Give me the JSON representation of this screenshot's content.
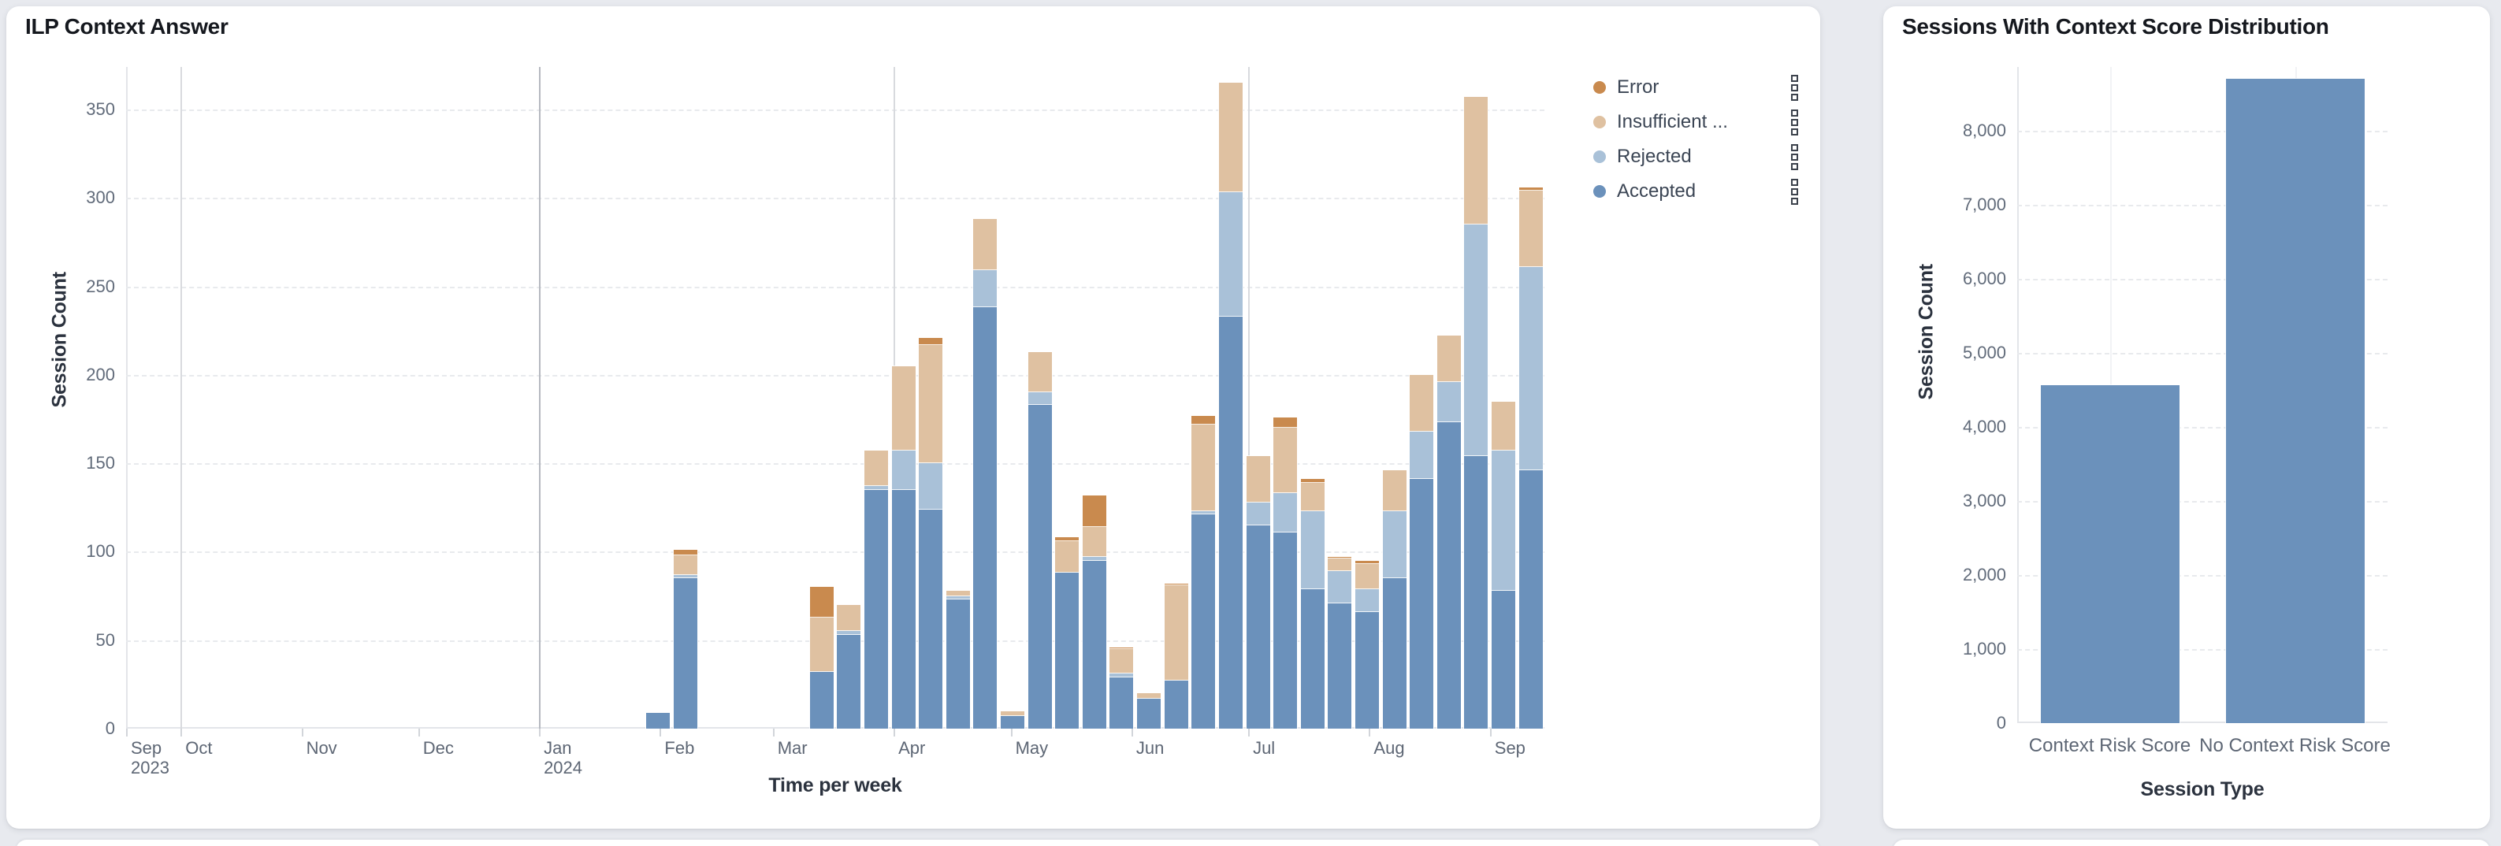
{
  "page": {
    "background": "#e8eaef"
  },
  "chart_data": [
    {
      "type": "bar",
      "stacked": true,
      "title": "ILP Context Answer",
      "xlabel": "Time per week",
      "ylabel": "Session Count",
      "ylim": [
        0,
        374
      ],
      "y_ticks": [
        0,
        50,
        100,
        150,
        200,
        250,
        300,
        350
      ],
      "grid": "dashed-horizontal",
      "legend_position": "right-top",
      "axis_start_week": "2023-09-17",
      "weeks_total": 52,
      "series_order_bottom_to_top": [
        "accepted",
        "rejected",
        "insufficient",
        "error"
      ],
      "legend": [
        {
          "key": "error",
          "label": "Error",
          "color": "#c98a4e"
        },
        {
          "key": "insufficient",
          "label": "Insufficient ...",
          "color": "#dfc1a1"
        },
        {
          "key": "rejected",
          "label": "Rejected",
          "color": "#a9c1d8"
        },
        {
          "key": "accepted",
          "label": "Accepted",
          "color": "#6b91bb"
        }
      ],
      "month_ticks": [
        {
          "label": "Sep",
          "sublabel": "2023",
          "week": 0
        },
        {
          "label": "Oct",
          "week": 2.0
        },
        {
          "label": "Nov",
          "week": 6.43
        },
        {
          "label": "Dec",
          "week": 10.71
        },
        {
          "label": "Jan",
          "sublabel": "2024",
          "week": 15.14
        },
        {
          "label": "Feb",
          "week": 19.57
        },
        {
          "label": "Mar",
          "week": 23.71
        },
        {
          "label": "Apr",
          "week": 28.14
        },
        {
          "label": "May",
          "week": 32.43
        },
        {
          "label": "Jun",
          "week": 36.86
        },
        {
          "label": "Jul",
          "week": 41.14
        },
        {
          "label": "Aug",
          "week": 45.57
        },
        {
          "label": "Sep",
          "week": 50.0
        }
      ],
      "quarter_lines": [
        {
          "week": 2.0,
          "year_boundary": false
        },
        {
          "week": 15.14,
          "year_boundary": true
        },
        {
          "week": 28.14,
          "year_boundary": false
        },
        {
          "week": 41.14,
          "year_boundary": false
        }
      ],
      "bars": [
        {
          "week_start": "2024-01-28",
          "week_index": 19,
          "accepted": 9,
          "rejected": 0,
          "insufficient": 0,
          "error": 0
        },
        {
          "week_start": "2024-02-04",
          "week_index": 20,
          "accepted": 85,
          "rejected": 2,
          "insufficient": 11,
          "error": 3
        },
        {
          "week_start": "2024-03-10",
          "week_index": 25,
          "accepted": 32,
          "rejected": 0,
          "insufficient": 31,
          "error": 17
        },
        {
          "week_start": "2024-03-17",
          "week_index": 26,
          "accepted": 53,
          "rejected": 2,
          "insufficient": 15,
          "error": 0
        },
        {
          "week_start": "2024-03-24",
          "week_index": 27,
          "accepted": 135,
          "rejected": 2,
          "insufficient": 20,
          "error": 0
        },
        {
          "week_start": "2024-03-31",
          "week_index": 28,
          "accepted": 135,
          "rejected": 22,
          "insufficient": 48,
          "error": 0
        },
        {
          "week_start": "2024-04-07",
          "week_index": 29,
          "accepted": 124,
          "rejected": 26,
          "insufficient": 67,
          "error": 4
        },
        {
          "week_start": "2024-04-14",
          "week_index": 30,
          "accepted": 73,
          "rejected": 2,
          "insufficient": 3,
          "error": 0
        },
        {
          "week_start": "2024-04-21",
          "week_index": 31,
          "accepted": 238,
          "rejected": 21,
          "insufficient": 29,
          "error": 0
        },
        {
          "week_start": "2024-04-28",
          "week_index": 32,
          "accepted": 7,
          "rejected": 0,
          "insufficient": 3,
          "error": 0
        },
        {
          "week_start": "2024-05-05",
          "week_index": 33,
          "accepted": 183,
          "rejected": 7,
          "insufficient": 23,
          "error": 0
        },
        {
          "week_start": "2024-05-12",
          "week_index": 34,
          "accepted": 88,
          "rejected": 0,
          "insufficient": 18,
          "error": 2
        },
        {
          "week_start": "2024-05-19",
          "week_index": 35,
          "accepted": 95,
          "rejected": 2,
          "insufficient": 17,
          "error": 18
        },
        {
          "week_start": "2024-05-26",
          "week_index": 36,
          "accepted": 29,
          "rejected": 2,
          "insufficient": 14,
          "error": 1
        },
        {
          "week_start": "2024-06-02",
          "week_index": 37,
          "accepted": 17,
          "rejected": 0,
          "insufficient": 3,
          "error": 0
        },
        {
          "week_start": "2024-06-09",
          "week_index": 38,
          "accepted": 27,
          "rejected": 0,
          "insufficient": 54,
          "error": 1
        },
        {
          "week_start": "2024-06-16",
          "week_index": 39,
          "accepted": 121,
          "rejected": 2,
          "insufficient": 49,
          "error": 5
        },
        {
          "week_start": "2024-06-23",
          "week_index": 40,
          "accepted": 233,
          "rejected": 70,
          "insufficient": 62,
          "error": 0
        },
        {
          "week_start": "2024-06-30",
          "week_index": 41,
          "accepted": 115,
          "rejected": 13,
          "insufficient": 26,
          "error": 0
        },
        {
          "week_start": "2024-07-07",
          "week_index": 42,
          "accepted": 111,
          "rejected": 22,
          "insufficient": 37,
          "error": 6
        },
        {
          "week_start": "2024-07-14",
          "week_index": 43,
          "accepted": 79,
          "rejected": 44,
          "insufficient": 16,
          "error": 2
        },
        {
          "week_start": "2024-07-21",
          "week_index": 44,
          "accepted": 71,
          "rejected": 18,
          "insufficient": 7,
          "error": 1
        },
        {
          "week_start": "2024-07-28",
          "week_index": 45,
          "accepted": 66,
          "rejected": 13,
          "insufficient": 14,
          "error": 2
        },
        {
          "week_start": "2024-08-04",
          "week_index": 46,
          "accepted": 85,
          "rejected": 38,
          "insufficient": 23,
          "error": 0
        },
        {
          "week_start": "2024-08-11",
          "week_index": 47,
          "accepted": 141,
          "rejected": 27,
          "insufficient": 32,
          "error": 0
        },
        {
          "week_start": "2024-08-18",
          "week_index": 48,
          "accepted": 173,
          "rejected": 23,
          "insufficient": 26,
          "error": 0
        },
        {
          "week_start": "2024-08-25",
          "week_index": 49,
          "accepted": 154,
          "rejected": 131,
          "insufficient": 72,
          "error": 0
        },
        {
          "week_start": "2024-09-01",
          "week_index": 50,
          "accepted": 78,
          "rejected": 79,
          "insufficient": 28,
          "error": 0
        },
        {
          "week_start": "2024-09-08",
          "week_index": 51,
          "accepted": 146,
          "rejected": 115,
          "insufficient": 43,
          "error": 2
        }
      ]
    },
    {
      "type": "bar",
      "stacked": false,
      "title": "Sessions With Context Score Distribution",
      "xlabel": "Session Type",
      "ylabel": "Session Count",
      "ylim": [
        0,
        8860
      ],
      "y_ticks": [
        0,
        1000,
        2000,
        3000,
        4000,
        5000,
        6000,
        7000,
        8000
      ],
      "y_tick_labels": [
        "0",
        "1,000",
        "2,000",
        "3,000",
        "4,000",
        "5,000",
        "6,000",
        "7,000",
        "8,000"
      ],
      "grid": "dashed-horizontal",
      "bar_color": "#6b91bb",
      "categories": [
        "Context Risk Score",
        "No Context Risk Score"
      ],
      "values": [
        4560,
        8700
      ]
    }
  ]
}
